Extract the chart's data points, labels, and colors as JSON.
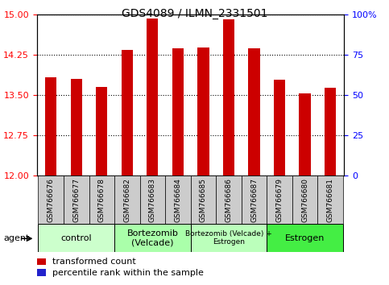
{
  "title": "GDS4089 / ILMN_2331501",
  "samples": [
    "GSM766676",
    "GSM766677",
    "GSM766678",
    "GSM766682",
    "GSM766683",
    "GSM766684",
    "GSM766685",
    "GSM766686",
    "GSM766687",
    "GSM766679",
    "GSM766680",
    "GSM766681"
  ],
  "bar_values": [
    13.82,
    13.8,
    13.65,
    14.33,
    14.92,
    14.37,
    14.38,
    14.9,
    14.37,
    13.78,
    13.52,
    13.63
  ],
  "bar_color": "#CC0000",
  "percentile_color": "#2222CC",
  "ylim_left": [
    12,
    15
  ],
  "ylim_right": [
    0,
    100
  ],
  "yticks_left": [
    12,
    12.75,
    13.5,
    14.25,
    15
  ],
  "yticks_right": [
    0,
    25,
    50,
    75,
    100
  ],
  "groups": [
    {
      "label": "control",
      "start": 0,
      "end": 3,
      "color": "#CCFFCC"
    },
    {
      "label": "Bortezomib\n(Velcade)",
      "start": 3,
      "end": 6,
      "color": "#AAFFAA"
    },
    {
      "label": "Bortezomib (Velcade) +\nEstrogen",
      "start": 6,
      "end": 9,
      "color": "#BBFFBB"
    },
    {
      "label": "Estrogen",
      "start": 9,
      "end": 12,
      "color": "#44EE44"
    }
  ],
  "legend_bar_label": "transformed count",
  "legend_pct_label": "percentile rank within the sample",
  "agent_label": "agent",
  "bar_width": 0.45,
  "sample_box_color": "#CCCCCC",
  "right_axis_top_label": "100%"
}
